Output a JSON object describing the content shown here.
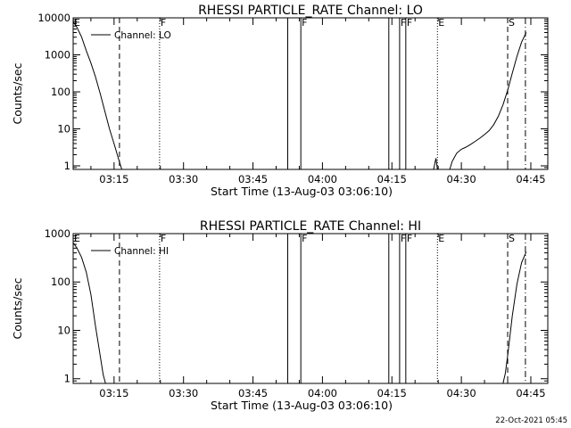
{
  "window": {
    "footer_timestamp": "22-Oct-2021 05:45"
  },
  "chart_data": [
    {
      "type": "line",
      "title": "RHESSI PARTICLE_RATE Channel: LO",
      "xlabel": "Start Time (13-Aug-03 03:06:10)",
      "ylabel": "Counts/sec",
      "yscale": "log",
      "xlim": [
        "03:06:10",
        "04:48:40"
      ],
      "ylim": [
        0.8,
        10000
      ],
      "x_ticks": [
        "03:15",
        "03:30",
        "03:45",
        "04:00",
        "04:15",
        "04:30",
        "04:45"
      ],
      "y_ticks": [
        "1",
        "10",
        "100",
        "1000",
        "10000"
      ],
      "legend": {
        "placement": "top-left",
        "entries": [
          "Channel: LO"
        ]
      },
      "series": [
        {
          "name": "Channel: LO",
          "x": [
            "03:06:10",
            "03:07:00",
            "03:08:00",
            "03:09:00",
            "03:10:00",
            "03:11:00",
            "03:12:00",
            "03:13:00",
            "03:14:00",
            "03:15:00",
            "03:16:00",
            "03:16:40",
            "04:24:00",
            "04:24:30",
            "04:24:50",
            "04:27:30",
            "04:28:00",
            "04:29:00",
            "04:30:00",
            "04:31:00",
            "04:32:00",
            "04:33:00",
            "04:34:00",
            "04:35:00",
            "04:36:00",
            "04:37:00",
            "04:38:00",
            "04:39:00",
            "04:40:00",
            "04:41:00",
            "04:42:00",
            "04:43:00",
            "04:44:00"
          ],
          "y": [
            8000,
            5500,
            3000,
            1300,
            600,
            250,
            90,
            30,
            10,
            4,
            1.5,
            0.8,
            0.8,
            1.6,
            0.8,
            0.8,
            1.3,
            2.2,
            2.8,
            3.2,
            3.8,
            4.6,
            5.6,
            7,
            9,
            13,
            22,
            45,
            110,
            320,
            900,
            2200,
            4000
          ]
        }
      ],
      "annotations": [
        {
          "x": "03:06:10",
          "label": "E",
          "line": "none"
        },
        {
          "x": "03:16:10",
          "label": "",
          "line": "dashed"
        },
        {
          "x": "03:24:50",
          "label": "F",
          "line": "dotted"
        },
        {
          "x": "03:52:30",
          "label": "",
          "line": "solid"
        },
        {
          "x": "03:55:20",
          "label": "F",
          "line": "solid"
        },
        {
          "x": "04:14:20",
          "label": "",
          "line": "solid"
        },
        {
          "x": "04:16:40",
          "label": "F",
          "line": "solid"
        },
        {
          "x": "04:18:00",
          "label": "F",
          "line": "solid"
        },
        {
          "x": "04:24:50",
          "label": "E",
          "line": "dotted"
        },
        {
          "x": "04:40:00",
          "label": "S",
          "line": "dashed"
        },
        {
          "x": "04:43:50",
          "label": "",
          "line": "dashdot"
        }
      ]
    },
    {
      "type": "line",
      "title": "RHESSI PARTICLE_RATE Channel: HI",
      "xlabel": "Start Time (13-Aug-03 03:06:10)",
      "ylabel": "Counts/sec",
      "yscale": "log",
      "xlim": [
        "03:06:10",
        "04:48:40"
      ],
      "ylim": [
        0.8,
        1000
      ],
      "x_ticks": [
        "03:15",
        "03:30",
        "03:45",
        "04:00",
        "04:15",
        "04:30",
        "04:45"
      ],
      "y_ticks": [
        "1",
        "10",
        "100",
        "1000"
      ],
      "legend": {
        "placement": "top-left",
        "entries": [
          "Channel: HI"
        ]
      },
      "series": [
        {
          "name": "Channel: HI",
          "x": [
            "03:06:10",
            "03:07:00",
            "03:08:00",
            "03:09:00",
            "03:10:00",
            "03:11:00",
            "03:12:00",
            "03:12:40",
            "03:13:10",
            "04:39:00",
            "04:39:30",
            "04:40:00",
            "04:41:00",
            "04:42:00",
            "04:43:00",
            "04:44:00"
          ],
          "y": [
            650,
            500,
            320,
            160,
            55,
            12,
            3,
            1.2,
            0.8,
            0.8,
            1.3,
            3,
            20,
            90,
            250,
            420
          ]
        }
      ],
      "annotations": [
        {
          "x": "03:06:10",
          "label": "E",
          "line": "none"
        },
        {
          "x": "03:16:10",
          "label": "",
          "line": "dashed"
        },
        {
          "x": "03:24:50",
          "label": "F",
          "line": "dotted"
        },
        {
          "x": "03:52:30",
          "label": "",
          "line": "solid"
        },
        {
          "x": "03:55:20",
          "label": "F",
          "line": "solid"
        },
        {
          "x": "04:14:20",
          "label": "",
          "line": "solid"
        },
        {
          "x": "04:16:40",
          "label": "F",
          "line": "solid"
        },
        {
          "x": "04:18:00",
          "label": "F",
          "line": "solid"
        },
        {
          "x": "04:24:50",
          "label": "E",
          "line": "dotted"
        },
        {
          "x": "04:40:00",
          "label": "S",
          "line": "dashed"
        },
        {
          "x": "04:43:50",
          "label": "",
          "line": "dashdot"
        }
      ]
    }
  ]
}
